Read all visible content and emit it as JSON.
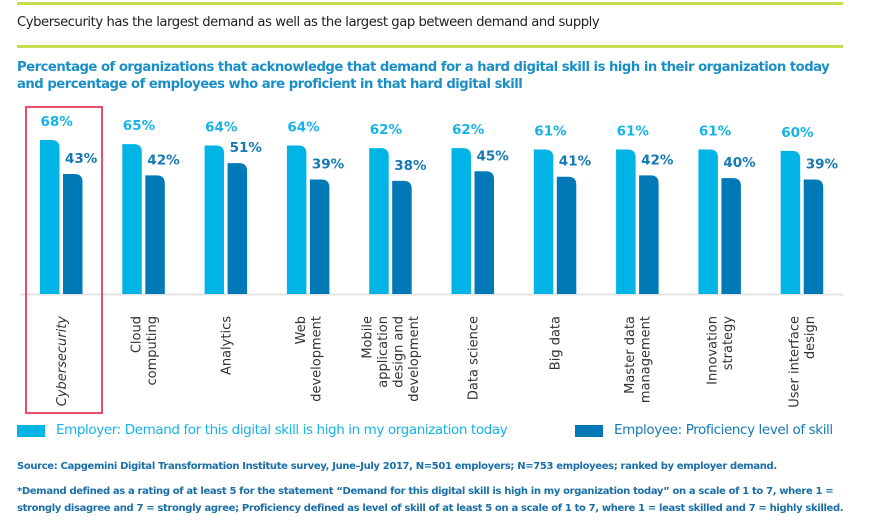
{
  "header": {
    "headline": "Cybersecurity has the largest demand as well as the largest gap between demand and supply",
    "subtitle": "Percentage of organizations that acknowledge that demand for a hard digital skill is high in their organization today and percentage of employees who are proficient in that hard digital skill"
  },
  "colors": {
    "accent_rule": "#c5dd4e",
    "employer": "#00b4e6",
    "employee": "#0079b6",
    "highlight": "#e8506a"
  },
  "legend": [
    {
      "label": "Employer: Demand for this digital skill is high in my organization today",
      "color": "#00b4e6"
    },
    {
      "label": "Employee: Proficiency level of skill",
      "color": "#0079b6"
    }
  ],
  "footer": {
    "source": "Source: Capgemini Digital Transformation Institute survey, June–July 2017, N=501 employers; N=753 employees; ranked by employer demand.",
    "footnote": "*Demand defined as a rating of at least 5 for the statement “Demand for this digital skill is high in my organization today” on a scale of 1 to 7, where 1 = strongly disagree and 7 = strongly agree; Proficiency defined as level of skill of at least 5 on a scale of 1 to 7, where 1 = least skilled and 7 = highly skilled."
  },
  "chart_data": {
    "type": "bar",
    "title": "Percentage of organizations that acknowledge that demand for a hard digital skill is high in their organization today and percentage of employees who are proficient in that hard digital skill",
    "xlabel": "",
    "ylabel": "",
    "value_suffix": "%",
    "highlighted_category": "Cybersecurity",
    "grid": false,
    "legend_position": "bottom",
    "categories": [
      [
        "Cybersecurity"
      ],
      [
        "Cloud",
        "computing"
      ],
      [
        "Analytics"
      ],
      [
        "Web",
        "development"
      ],
      [
        "Mobile",
        "application",
        "design and",
        "development"
      ],
      [
        "Data science"
      ],
      [
        "Big data"
      ],
      [
        "Master data",
        "management"
      ],
      [
        "Innovation",
        "strategy"
      ],
      [
        "User interface",
        "design"
      ]
    ],
    "series": [
      {
        "name": "Employer: Demand for this digital skill is high in my organization today",
        "values": [
          68,
          65,
          64,
          64,
          62,
          62,
          61,
          61,
          61,
          60
        ]
      },
      {
        "name": "Employee: Proficiency level of skill",
        "values": [
          43,
          42,
          51,
          39,
          38,
          45,
          41,
          42,
          40,
          39
        ]
      }
    ]
  }
}
